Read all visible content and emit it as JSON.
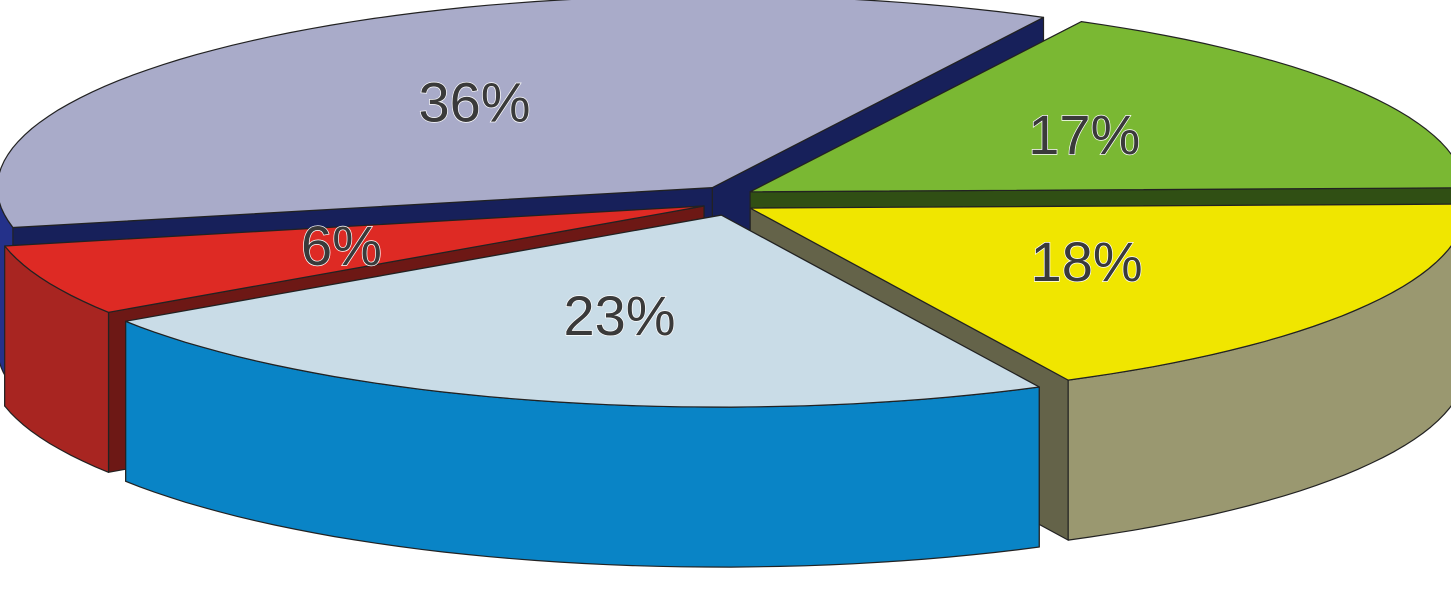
{
  "chart_data": {
    "type": "pie",
    "style": "3d-exploded",
    "title": "",
    "legend": "none",
    "slices": [
      {
        "label": "36%",
        "value": 36,
        "top_color": "#a9abc9",
        "side_color": "#24318a"
      },
      {
        "label": "17%",
        "value": 17,
        "top_color": "#7ab833",
        "side_color": "#4a7a1f"
      },
      {
        "label": "18%",
        "value": 18,
        "top_color": "#f0e600",
        "side_color": "#9a9870"
      },
      {
        "label": "23%",
        "value": 23,
        "top_color": "#c9dce7",
        "side_color": "#0984c6"
      },
      {
        "label": "6%",
        "value": 6,
        "top_color": "#de2a24",
        "side_color": "#a82521"
      }
    ]
  }
}
